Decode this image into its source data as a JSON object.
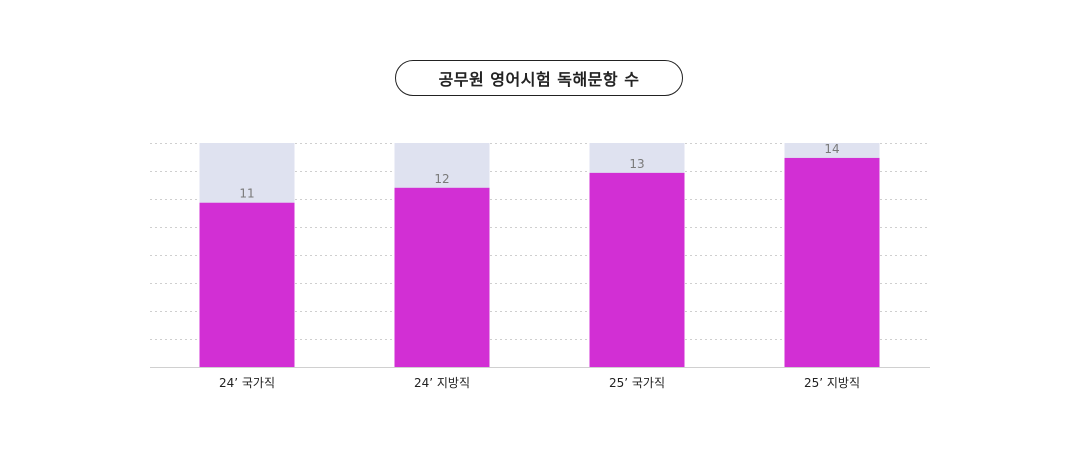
{
  "chart_data": {
    "type": "bar",
    "title": "공무원 영어시험 독해문항 수",
    "categories": [
      "24’ 국가직",
      "24’ 지방직",
      "25’ 국가직",
      "25’ 지방직"
    ],
    "values": [
      11,
      12,
      13,
      14
    ],
    "ylim": [
      0,
      15
    ],
    "xlabel": "",
    "ylabel": "",
    "grid": true,
    "legend": "none",
    "bar_color": "#d22fd4",
    "background_bar_color": "#dfe2f0",
    "label_color": "#7a7a7a"
  }
}
